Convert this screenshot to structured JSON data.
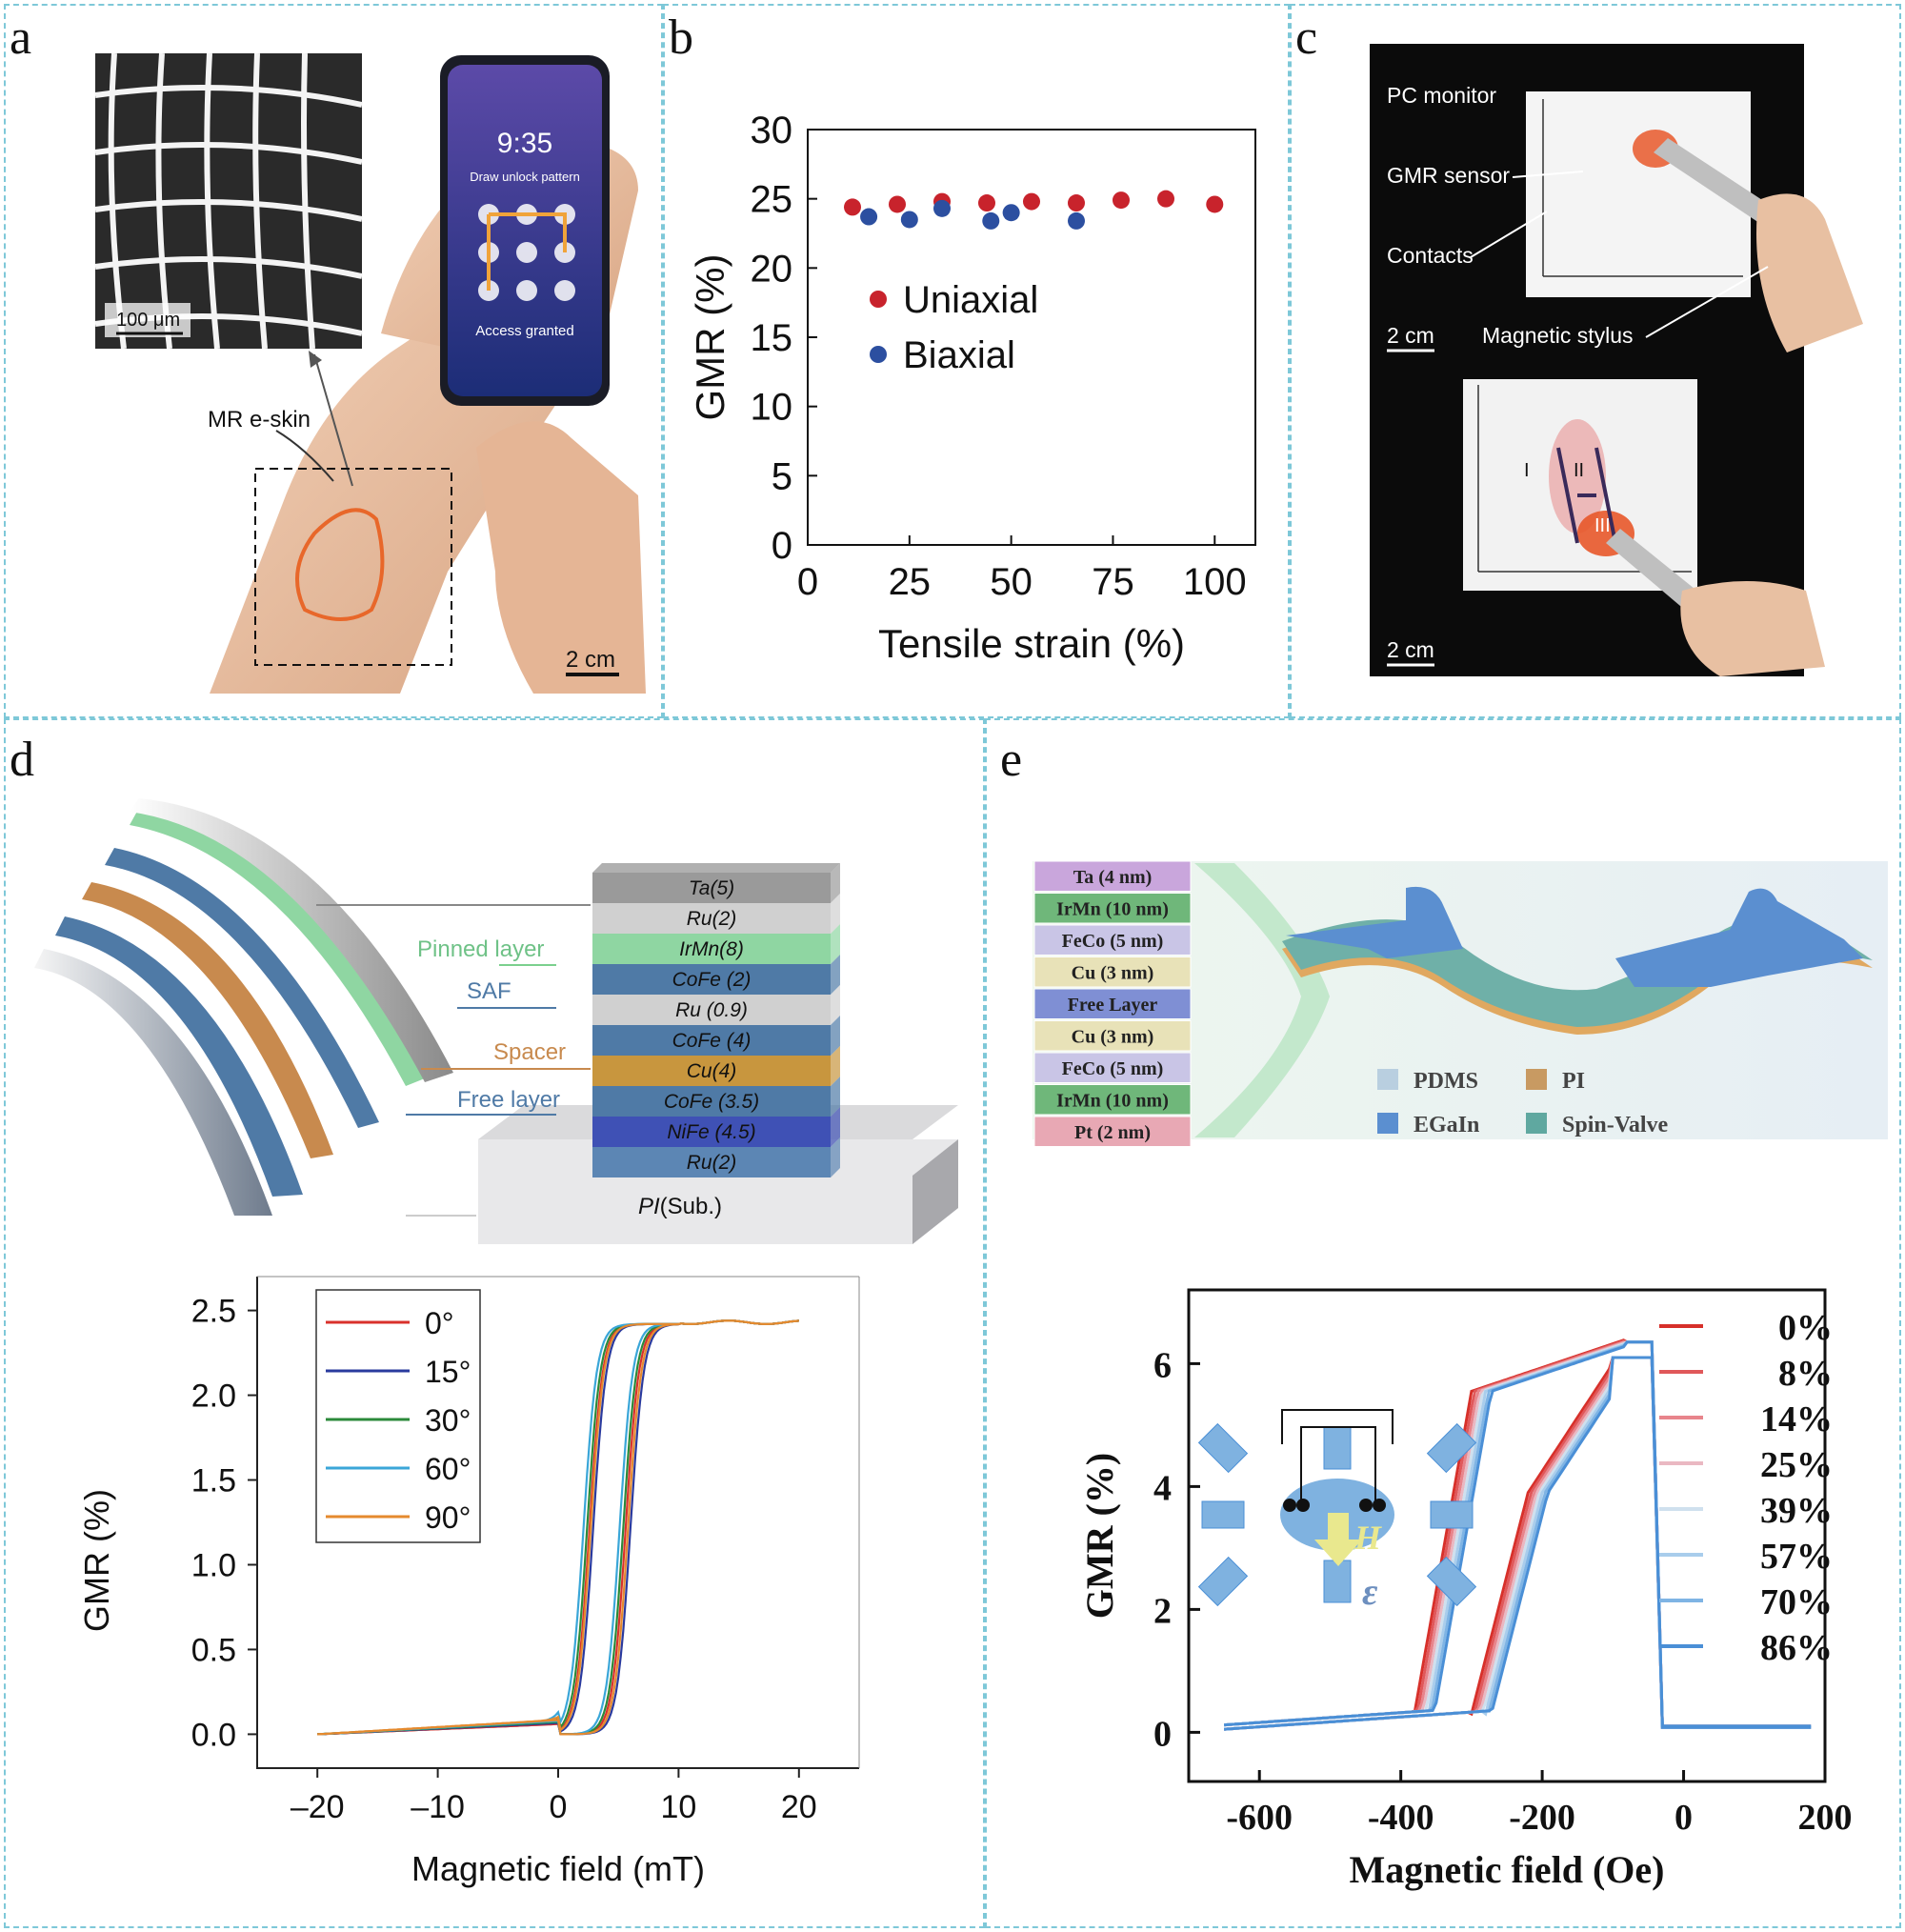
{
  "panels": {
    "a": {
      "label": "a",
      "scale_inset": "100 μm",
      "phone_time": "9:35",
      "phone_prompt": "Draw unlock pattern",
      "phone_status": "Access granted",
      "mr_label": "MR e-skin",
      "scale": "2 cm"
    },
    "b": {
      "label": "b"
    },
    "c": {
      "label": "c",
      "pc_monitor": "PC monitor",
      "gmr_sensor": "GMR sensor",
      "contacts": "Contacts",
      "scale_top": "2 cm",
      "magnetic_stylus": "Magnetic stylus",
      "roman_1": "I",
      "roman_2": "II",
      "roman_3": "III",
      "scale_bottom": "2 cm"
    },
    "d": {
      "label": "d",
      "layers": [
        "Ta(5)",
        "Ru(2)",
        "IrMn(8)",
        "CoFe (2)",
        "Ru (0.9)",
        "CoFe (4)",
        "Cu(4)",
        "CoFe (3.5)",
        "NiFe (4.5)",
        "Ru(2)"
      ],
      "substrate_italic": "PI",
      "substrate_rest": "(Sub.)",
      "pinned_layer": "Pinned layer",
      "saf": "SAF",
      "spacer": "Spacer",
      "free_layer": "Free layer"
    },
    "e": {
      "label": "e",
      "stack": [
        "Ta (4 nm)",
        "IrMn (10 nm)",
        "FeCo (5 nm)",
        "Cu (3 nm)",
        "Free Layer",
        "Cu (3 nm)",
        "FeCo (5 nm)",
        "IrMn (10 nm)",
        "Pt (2 nm)"
      ],
      "legend": [
        "PDMS",
        "PI",
        "EGaIn",
        "Spin-Valve"
      ],
      "inset_h": "H",
      "inset_eps": "ε"
    }
  },
  "chart_data": [
    {
      "id": "b",
      "type": "scatter",
      "xlabel": "Tensile strain (%)",
      "ylabel": "GMR (%)",
      "xlim": [
        0,
        110
      ],
      "ylim": [
        0,
        30
      ],
      "xticks": [
        0,
        25,
        50,
        75,
        100
      ],
      "yticks": [
        0,
        5,
        10,
        15,
        20,
        25,
        30
      ],
      "legend_position": "center-left",
      "series": [
        {
          "name": "Uniaxial",
          "color": "#c8232c",
          "x": [
            11,
            22,
            33,
            44,
            55,
            66,
            77,
            88,
            100
          ],
          "y": [
            24.4,
            24.6,
            24.8,
            24.7,
            24.8,
            24.7,
            24.9,
            25.0,
            24.6
          ]
        },
        {
          "name": "Biaxial",
          "color": "#2c4fa0",
          "x": [
            15,
            25,
            33,
            45,
            50,
            66
          ],
          "y": [
            23.7,
            23.5,
            24.3,
            23.4,
            24.0,
            23.4
          ]
        }
      ]
    },
    {
      "id": "d",
      "type": "line",
      "xlabel": "Magnetic field (mT)",
      "ylabel": "GMR (%)",
      "xlim": [
        -25,
        25
      ],
      "ylim": [
        -0.2,
        2.7
      ],
      "xticks": [
        "–20",
        "–10",
        "0",
        "10",
        "20"
      ],
      "xtick_values": [
        -20,
        -10,
        0,
        10,
        20
      ],
      "yticks": [
        "0.0",
        "0.5",
        "1.0",
        "1.5",
        "2.0",
        "2.5"
      ],
      "ytick_values": [
        0,
        0.5,
        1.0,
        1.5,
        2.0,
        2.5
      ],
      "legend_position": "top-left",
      "series": [
        {
          "name": "0°",
          "color": "#d9312b",
          "up": 2.6,
          "down": 5.6
        },
        {
          "name": "15°",
          "color": "#2a3a9e",
          "up": 2.9,
          "down": 6.0
        },
        {
          "name": "30°",
          "color": "#2b8a3a",
          "up": 2.4,
          "down": 5.4
        },
        {
          "name": "60°",
          "color": "#3aa6d8",
          "up": 2.1,
          "down": 5.1
        },
        {
          "name": "90°",
          "color": "#e58a2e",
          "up": 2.7,
          "down": 5.8
        }
      ]
    },
    {
      "id": "e",
      "type": "line",
      "xlabel": "Magnetic field (Oe)",
      "ylabel": "GMR (%)",
      "xlim": [
        -700,
        200
      ],
      "ylim": [
        -0.8,
        7.2
      ],
      "xticks": [
        "-600",
        "-400",
        "-200",
        "0",
        "200"
      ],
      "xtick_values": [
        -600,
        -400,
        -200,
        0,
        200
      ],
      "yticks": [
        "0",
        "2",
        "4",
        "6"
      ],
      "ytick_values": [
        0,
        2,
        4,
        6
      ],
      "legend_position": "right",
      "series": [
        {
          "name": "0%",
          "color": "#d7302a"
        },
        {
          "name": "8%",
          "color": "#e0585a"
        },
        {
          "name": "14%",
          "color": "#e8858c"
        },
        {
          "name": "25%",
          "color": "#eab8c2"
        },
        {
          "name": "39%",
          "color": "#cfe0ee"
        },
        {
          "name": "57%",
          "color": "#a9cdec"
        },
        {
          "name": "70%",
          "color": "#7fb4e4"
        },
        {
          "name": "86%",
          "color": "#4a8fd6"
        }
      ]
    }
  ]
}
